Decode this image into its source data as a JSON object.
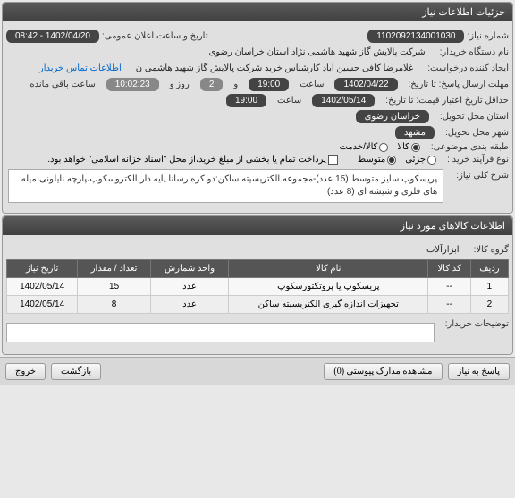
{
  "header": {
    "title": "جزئیات اطلاعات نیاز"
  },
  "need_number": {
    "label": "شماره نیاز:",
    "value": "1102092134001030"
  },
  "announce": {
    "label": "تاریخ و ساعت اعلان عمومی:",
    "value": "1402/04/20 - 08:42"
  },
  "buyer": {
    "label": "نام دستگاه خریدار:",
    "value": "شرکت پالایش گاز شهید هاشمی نژاد   استان خراسان رضوی"
  },
  "requester": {
    "label": "ایجاد کننده درخواست:",
    "value": "غلامرضا کافی حسین آباد کارشناس خرید  شرکت پالایش گاز شهید هاشمی ن",
    "contact_link": "اطلاعات تماس خریدار"
  },
  "deadline": {
    "label": "مهلت ارسال پاسخ: تا تاریخ:",
    "date": "1402/04/22",
    "hour_label": "ساعت",
    "hour": "19:00",
    "and": "و",
    "days": "2",
    "days_label": "روز و",
    "time_left": "10:02:23",
    "time_left_label": "ساعت باقی مانده"
  },
  "validity": {
    "label": "حداقل تاریخ اعتبار قیمت: تا تاریخ:",
    "date": "1402/05/14",
    "hour_label": "ساعت",
    "hour": "19:00"
  },
  "province": {
    "label": "استان محل تحویل:",
    "value": "خراسان رضوی"
  },
  "city": {
    "label": "شهر محل تحویل:",
    "value": "مشهد"
  },
  "classification": {
    "label": "طبقه بندی موضوعی:",
    "options": [
      "کالا",
      "کالا/خدمت"
    ],
    "selected": 0
  },
  "purchase_process": {
    "label": "نوع فرآیند خرید :",
    "options": [
      "جزئی",
      "متوسط"
    ],
    "selected": 1,
    "checkbox_label": "پرداخت تمام یا بخشی از مبلغ خرید،از محل \"اسناد خزانه اسلامی\" خواهد بود."
  },
  "description": {
    "label": "شرح کلی نیاز:",
    "text": "پریسکوپ سایز متوسط (15 عدد)-مجموعه الکتریسیته ساکن:دو کره رسانا پایه دار،الکتروسکوپ،پارچه نایلونی،میله های فلزی و شیشه ای (8 عدد)"
  },
  "goods": {
    "header": "اطلاعات کالاهای مورد نیاز",
    "group_label": "گروه کالا:",
    "group_value": "ابزارآلات",
    "columns": [
      "ردیف",
      "کد کالا",
      "نام کالا",
      "واحد شمارش",
      "تعداد / مقدار",
      "تاریخ نیاز"
    ],
    "rows": [
      [
        "1",
        "--",
        "پریسکوپ یا پروتکتورسکوپ",
        "عدد",
        "15",
        "1402/05/14"
      ],
      [
        "2",
        "--",
        "تجهیزات اندازه گیری الکتریسیته ساکن",
        "عدد",
        "8",
        "1402/05/14"
      ]
    ]
  },
  "buyer_notes": {
    "label": "توضیحات خریدار:"
  },
  "footer": {
    "reply": "پاسخ به نیاز",
    "attachments": "مشاهده مدارک پیوستی (0)",
    "back": "بازگشت",
    "exit": "خروج"
  }
}
